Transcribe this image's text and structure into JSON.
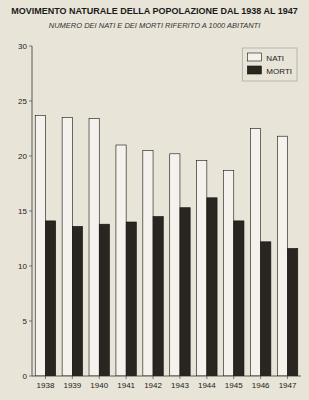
{
  "chart_data": {
    "type": "bar",
    "title": "MOVIMENTO NATURALE DELLA POPOLAZIONE DAL 1938 AL 1947",
    "subtitle": "NUMERO DEI NATI E DEI MORTI RIFERITO A 1000 ABITANTI",
    "categories": [
      "1938",
      "1939",
      "1940",
      "1941",
      "1942",
      "1943",
      "1944",
      "1945",
      "1946",
      "1947"
    ],
    "series": [
      {
        "name": "NATI",
        "color": "#f5f2ed",
        "values": [
          23.7,
          23.5,
          23.4,
          21.0,
          20.5,
          20.2,
          19.6,
          18.7,
          22.5,
          21.8
        ]
      },
      {
        "name": "MORTI",
        "color": "#2a2520",
        "values": [
          14.1,
          13.6,
          13.8,
          14.0,
          14.5,
          15.3,
          16.2,
          14.1,
          12.2,
          11.6
        ]
      }
    ],
    "ylim": [
      0,
      30
    ],
    "yticks": [
      0,
      5,
      10,
      15,
      20,
      25,
      30
    ],
    "grid": false,
    "legend": "upper right"
  }
}
